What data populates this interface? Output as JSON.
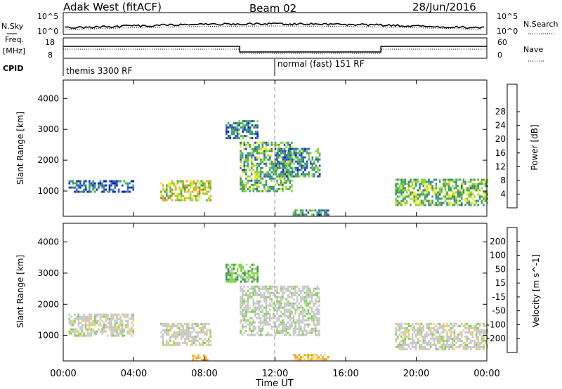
{
  "header": {
    "station": "Adak West (fitACF)",
    "beam": "Beam 02",
    "date": "28/Jun/2016"
  },
  "panel_noise": {
    "left_label": "N.Sky",
    "right_label": "N.Search",
    "left_ticks": [
      "10^5",
      "10^0"
    ],
    "right_ticks": [
      "10^5",
      "10^0"
    ]
  },
  "panel_freq": {
    "left_label_1": "Freq.",
    "left_label_2": "[MHz]",
    "left_ticks": [
      "18",
      "8"
    ],
    "right_label": "Nave",
    "right_ticks": [
      "60",
      "0"
    ]
  },
  "panel_cpid": {
    "label": "CPID",
    "modes": [
      {
        "text": "themis 3300 RF",
        "start_hour": 0
      },
      {
        "text": "normal (fast) 151 RF",
        "start_hour": 12
      }
    ]
  },
  "x_axis": {
    "label": "Time UT",
    "ticks": [
      "00:00",
      "04:00",
      "08:00",
      "12:00",
      "16:00",
      "20:00",
      "00:00"
    ],
    "range_hours": [
      0,
      24
    ]
  },
  "colors": {
    "power": [
      "#0a14e6",
      "#2a50b4",
      "#3c8c8c",
      "#3faa5a",
      "#8ed23c",
      "#f0e61e",
      "#f0a01e",
      "#f05a14",
      "#e61414"
    ],
    "velocity": [
      "#e10f0f",
      "#f0500f",
      "#f5a01e",
      "#f5d25a",
      "#c8c8c8",
      "#82d250",
      "#3c9650",
      "#3250b4",
      "#1e28c8"
    ]
  },
  "chart_data": [
    {
      "type": "heatmap",
      "name": "power",
      "ylabel": "Slant Range [km]",
      "xlabel": "",
      "ylim": [
        180,
        4600
      ],
      "yticks": [
        "1000",
        "2000",
        "3000",
        "4000"
      ],
      "colorbar": {
        "label": "Power [dB]",
        "ticks": [
          "4",
          "8",
          "12",
          "16",
          "20",
          "24",
          "28"
        ],
        "range": [
          0,
          32
        ]
      },
      "regions": [
        {
          "x": [
            0.3,
            4.0
          ],
          "y": [
            1000,
            1350
          ],
          "value": 7
        },
        {
          "x": [
            5.5,
            8.3
          ],
          "y": [
            700,
            1350
          ],
          "value": 18
        },
        {
          "x": [
            10.0,
            13.0
          ],
          "y": [
            1000,
            2600
          ],
          "value": 13
        },
        {
          "x": [
            12.0,
            14.5
          ],
          "y": [
            1500,
            2400
          ],
          "value": 10
        },
        {
          "x": [
            18.8,
            24.0
          ],
          "y": [
            550,
            1400
          ],
          "value": 14
        },
        {
          "x": [
            9.2,
            11.0
          ],
          "y": [
            2700,
            3300
          ],
          "value": 9
        },
        {
          "x": [
            13.0,
            15.0
          ],
          "y": [
            200,
            400
          ],
          "value": 10
        }
      ]
    },
    {
      "type": "heatmap",
      "name": "velocity",
      "ylabel": "Slant Range [km]",
      "xlabel": "Time UT",
      "ylim": [
        180,
        4600
      ],
      "yticks": [
        "1000",
        "2000",
        "3000",
        "4000"
      ],
      "colorbar": {
        "label": "Velocity [m s^-1]",
        "ticks": [
          "200",
          "100",
          "50",
          "15",
          "-15",
          "-50",
          "-100",
          "-200"
        ]
      },
      "regions": [
        {
          "x": [
            0.3,
            4.0
          ],
          "y": [
            1000,
            1700
          ],
          "value": 0
        },
        {
          "x": [
            5.5,
            8.3
          ],
          "y": [
            700,
            1400
          ],
          "value": 0
        },
        {
          "x": [
            10.0,
            14.5
          ],
          "y": [
            1000,
            2600
          ],
          "value": 5
        },
        {
          "x": [
            18.8,
            24.0
          ],
          "y": [
            550,
            1400
          ],
          "value": 0
        },
        {
          "x": [
            7.3,
            8.2
          ],
          "y": [
            200,
            380
          ],
          "value": -60
        },
        {
          "x": [
            13.0,
            15.0
          ],
          "y": [
            200,
            400
          ],
          "value": -40
        },
        {
          "x": [
            9.2,
            11.0
          ],
          "y": [
            2700,
            3300
          ],
          "value": 40
        }
      ]
    }
  ]
}
